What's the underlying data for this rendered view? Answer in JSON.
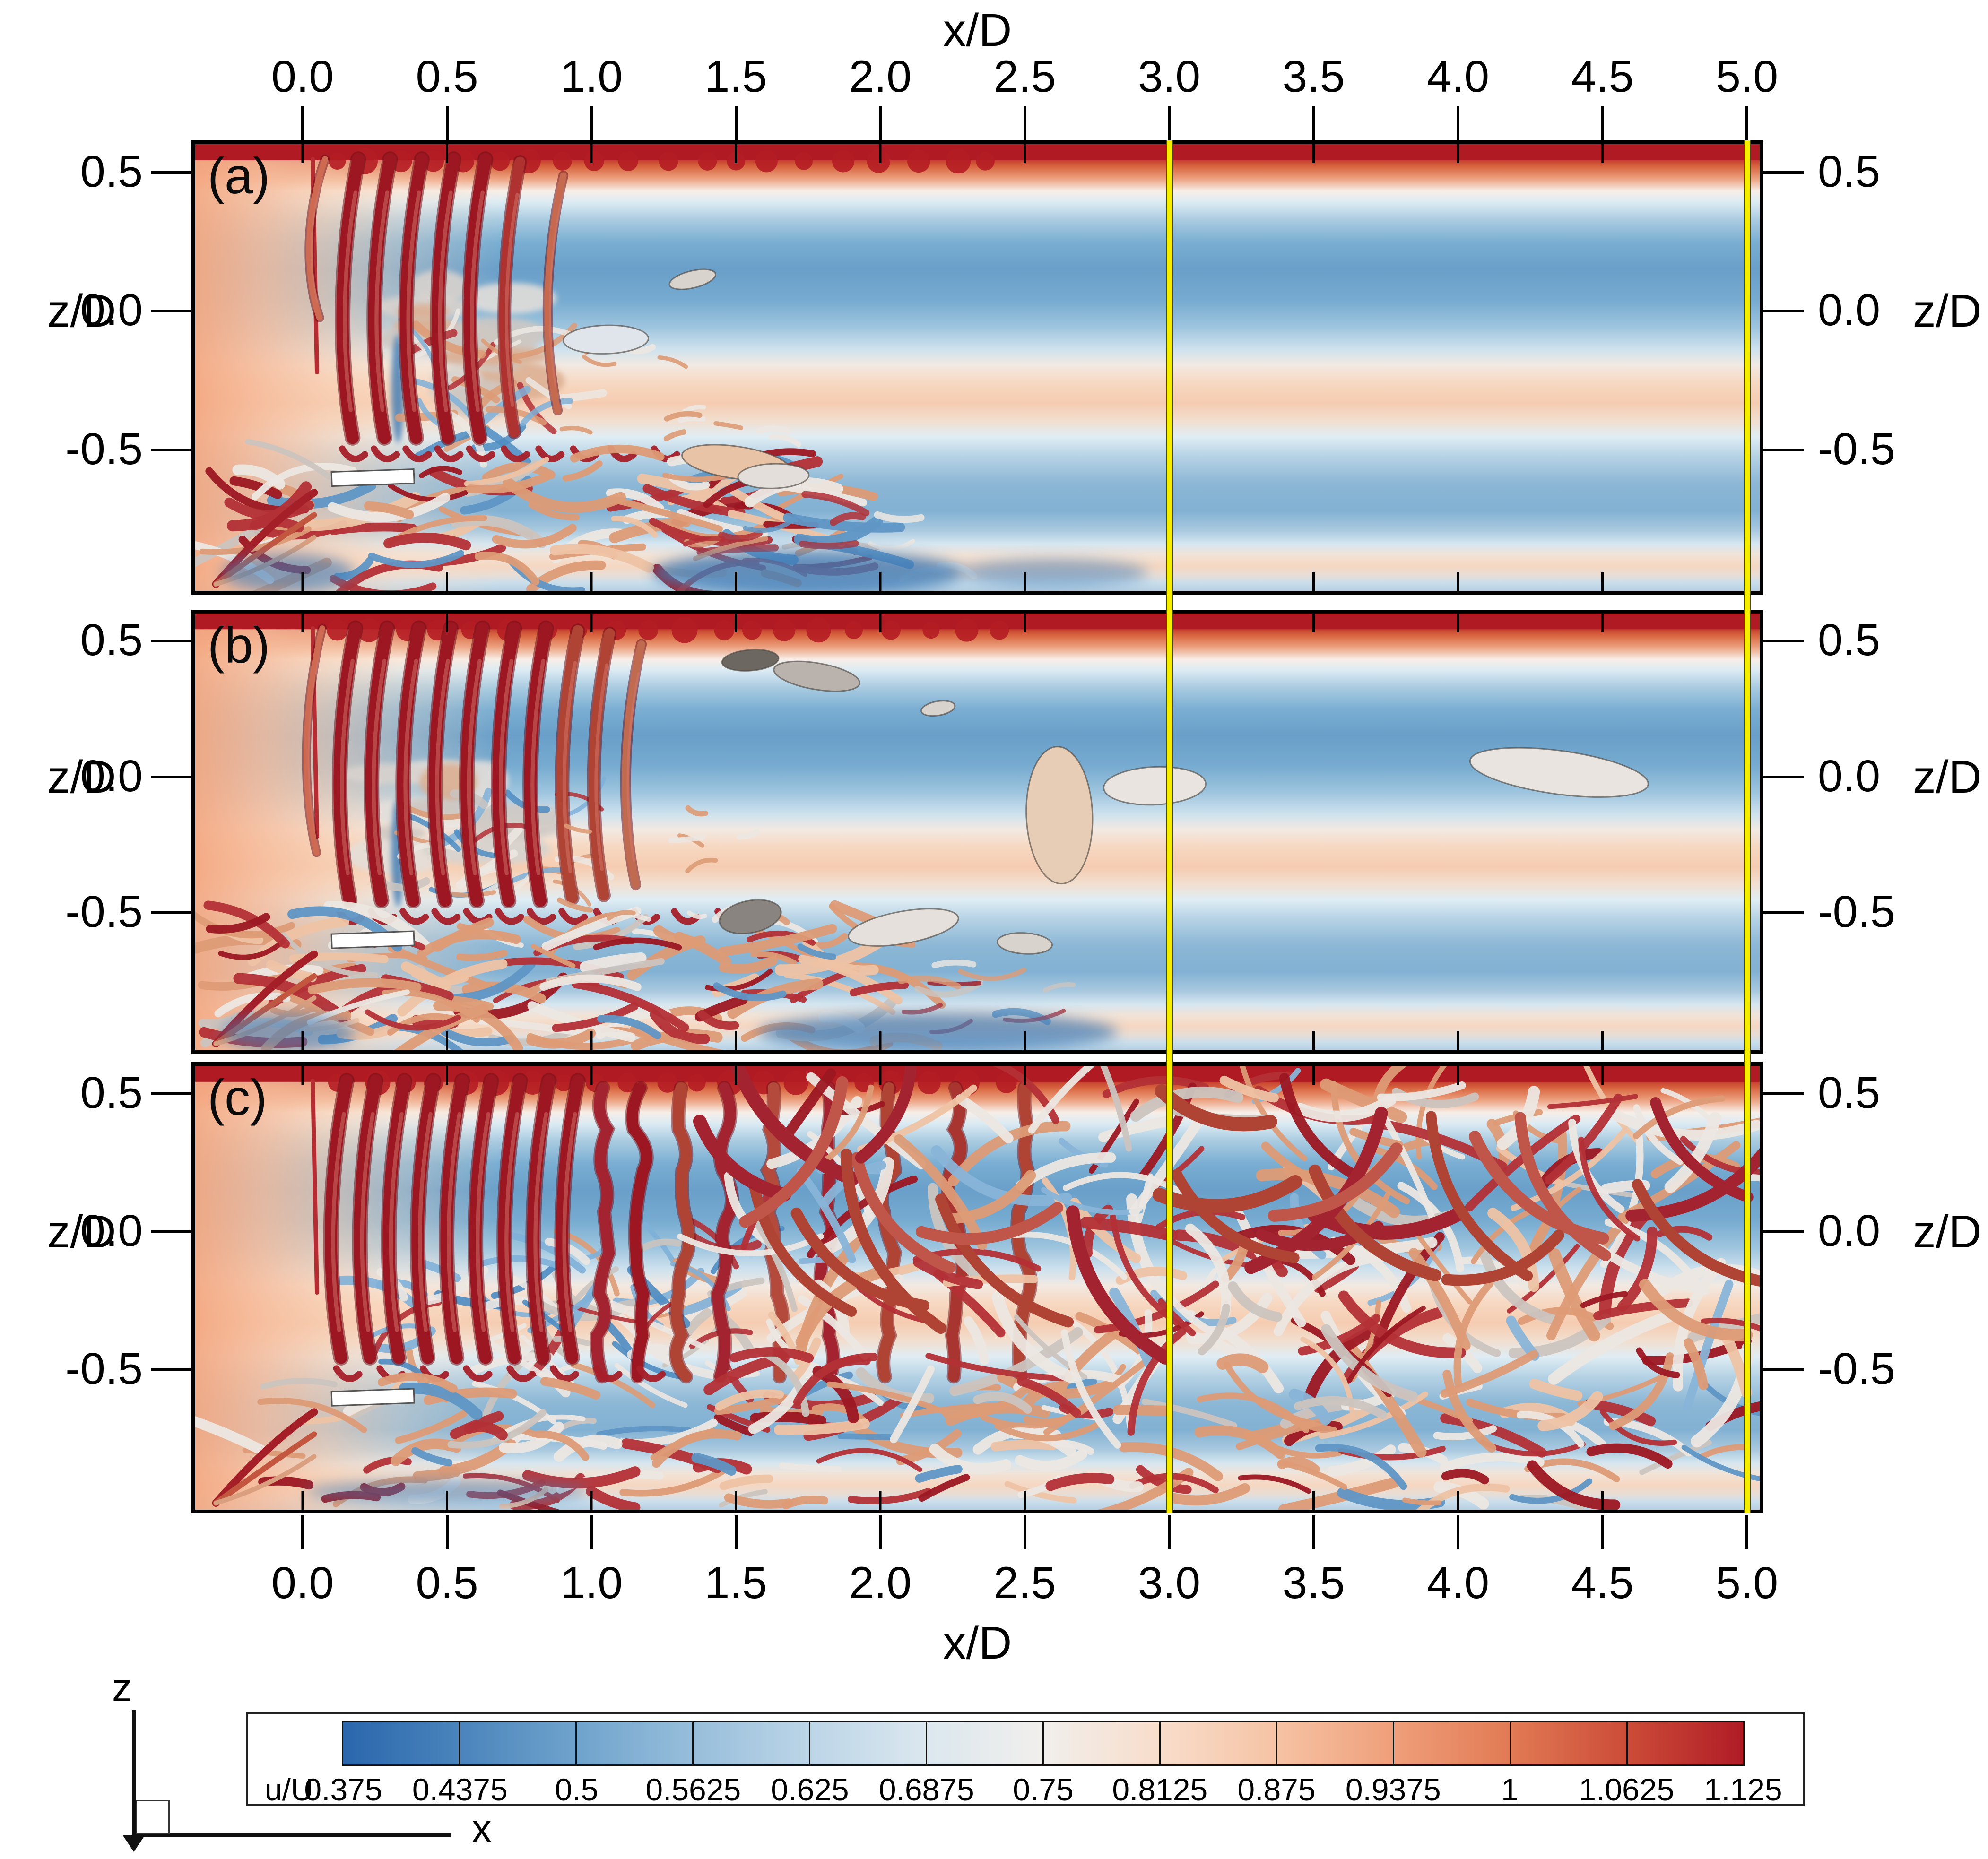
{
  "figure": {
    "description": "Instantaneous vortical structures and streamwise velocity contours, three stacked panels",
    "background": "#ffffff"
  },
  "axes": {
    "x": {
      "title": "x/D",
      "ticks": [
        "0.0",
        "0.5",
        "1.0",
        "1.5",
        "2.0",
        "2.5",
        "3.0",
        "3.5",
        "4.0",
        "4.5",
        "5.0"
      ],
      "tick_values": [
        0.0,
        0.5,
        1.0,
        1.5,
        2.0,
        2.5,
        3.0,
        3.5,
        4.0,
        4.5,
        5.0
      ]
    },
    "z": {
      "title": "z/D",
      "ticks": [
        "0.5",
        "0.0",
        "-0.5"
      ],
      "tick_values": [
        0.5,
        0.0,
        -0.5
      ]
    }
  },
  "panels": [
    {
      "label": "(a)"
    },
    {
      "label": "(b)"
    },
    {
      "label": "(c)"
    }
  ],
  "yellow_lines": {
    "x_values": [
      3.0,
      5.0
    ],
    "color": "#f6ee00"
  },
  "colorbar": {
    "label": "u/U",
    "values": [
      "0.375",
      "0.4375",
      "0.5",
      "0.5625",
      "0.625",
      "0.6875",
      "0.75",
      "0.8125",
      "0.875",
      "0.9375",
      "1",
      "1.0625",
      "1.125"
    ],
    "boundary_colors": [
      "#2a66ac",
      "#4a84bc",
      "#6fa3cc",
      "#97bedb",
      "#bcd5e7",
      "#dbe7ef",
      "#f1efec",
      "#f8ddcb",
      "#f6c3a4",
      "#ef9f7a",
      "#e17a54",
      "#cc4c38",
      "#b01c26"
    ]
  },
  "axis_indicator": {
    "vertical_label": "z",
    "horizontal_label": "x"
  },
  "colors": {
    "yellow_line": "#f6ee00",
    "vortex_red": "#9c1722",
    "deep_blue": "#2a66ac",
    "deep_red": "#b01c26",
    "panel_border": "#000000"
  },
  "chart_data": {
    "type": "heatmap",
    "title": "",
    "xlabel": "x/D",
    "ylabel": "z/D",
    "panels": [
      "(a)",
      "(b)",
      "(c)"
    ],
    "x_ticks": [
      0.0,
      0.5,
      1.0,
      1.5,
      2.0,
      2.5,
      3.0,
      3.5,
      4.0,
      4.5,
      5.0
    ],
    "z_ticks": [
      0.5,
      0.0,
      -0.5
    ],
    "xlim": [
      -0.38,
      5.06
    ],
    "zlim": [
      -1.02,
      0.62
    ],
    "colorbar": {
      "label": "u/U",
      "levels": [
        0.375,
        0.4375,
        0.5,
        0.5625,
        0.625,
        0.6875,
        0.75,
        0.8125,
        0.875,
        0.9375,
        1.0,
        1.0625,
        1.125
      ]
    },
    "reference_lines_x": [
      3.0,
      5.0
    ],
    "legend_position": "bottom",
    "grid": false
  }
}
